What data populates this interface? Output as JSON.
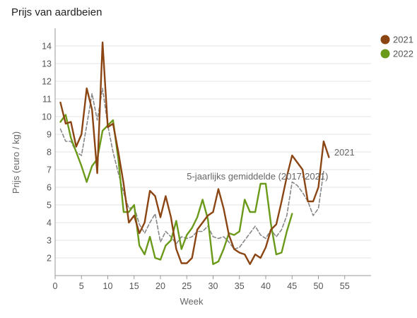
{
  "chart_data": {
    "type": "line",
    "title": "Prijs van aardbeien",
    "xlabel": "Week",
    "ylabel": "Prijs (euro / kg)",
    "xlim": [
      0,
      60
    ],
    "ylim": [
      1,
      15
    ],
    "xticks": [
      0,
      5,
      10,
      15,
      20,
      25,
      30,
      35,
      40,
      45,
      50,
      55
    ],
    "yticks": [
      2,
      3,
      4,
      5,
      6,
      7,
      8,
      9,
      10,
      11,
      12,
      13,
      14
    ],
    "grid": true,
    "legend": "top-right",
    "annotations": [
      {
        "text": "2021",
        "x": 53,
        "y": 7.8
      },
      {
        "text": "5-jaarlijks gemiddelde (2017-2021)",
        "x": 25,
        "y": 6.45
      }
    ],
    "series": [
      {
        "name": "2021",
        "color": "#8B4513",
        "style": "solid",
        "x": [
          1,
          2,
          3,
          4,
          5,
          6,
          7,
          8,
          9,
          10,
          11,
          12,
          13,
          14,
          15,
          16,
          17,
          18,
          19,
          20,
          21,
          22,
          23,
          24,
          25,
          26,
          27,
          28,
          29,
          30,
          31,
          32,
          33,
          34,
          35,
          36,
          37,
          38,
          39,
          40,
          41,
          42,
          43,
          44,
          45,
          46,
          47,
          48,
          49,
          50,
          51,
          52
        ],
        "y": [
          10.8,
          9.6,
          9.7,
          8.3,
          9.0,
          11.6,
          10.4,
          6.8,
          14.2,
          9.4,
          9.6,
          8.0,
          6.2,
          4.0,
          4.4,
          3.4,
          4.0,
          5.8,
          5.5,
          4.3,
          5.5,
          4.3,
          2.5,
          1.7,
          1.7,
          2.0,
          3.6,
          4.0,
          4.4,
          4.6,
          5.9,
          4.8,
          3.3,
          2.5,
          2.3,
          2.2,
          1.65,
          2.2,
          2.0,
          2.6,
          3.6,
          3.9,
          5.2,
          6.6,
          7.8,
          7.4,
          7.0,
          5.2,
          5.2,
          6.0,
          8.6,
          7.7
        ]
      },
      {
        "name": "2022",
        "color": "#6B9A1A",
        "style": "solid",
        "x": [
          1,
          2,
          3,
          4,
          5,
          6,
          7,
          8,
          9,
          10,
          11,
          12,
          13,
          14,
          15,
          16,
          17,
          18,
          19,
          20,
          21,
          22,
          23,
          24,
          25,
          26,
          27,
          28,
          29,
          30,
          31,
          32,
          33,
          34,
          35,
          36,
          37,
          38,
          39,
          40,
          41,
          42,
          43,
          44,
          45
        ],
        "y": [
          9.7,
          10.1,
          8.8,
          8.0,
          7.2,
          6.3,
          7.2,
          7.6,
          9.2,
          9.5,
          9.8,
          7.6,
          4.6,
          4.6,
          5.0,
          2.7,
          2.2,
          3.2,
          2.0,
          1.9,
          2.7,
          3.0,
          4.1,
          2.5,
          3.3,
          3.7,
          4.3,
          5.3,
          4.2,
          1.65,
          1.8,
          2.5,
          3.4,
          3.3,
          3.5,
          5.3,
          4.6,
          4.6,
          6.2,
          6.2,
          3.9,
          2.2,
          2.3,
          3.5,
          4.5
        ]
      },
      {
        "name": "5-jaarlijks gemiddelde (2017-2021)",
        "color": "#888888",
        "style": "dashed",
        "x": [
          1,
          2,
          3,
          4,
          5,
          6,
          7,
          8,
          9,
          10,
          11,
          12,
          13,
          14,
          15,
          16,
          17,
          18,
          19,
          20,
          21,
          22,
          23,
          24,
          25,
          26,
          27,
          28,
          29,
          30,
          31,
          32,
          33,
          34,
          35,
          36,
          37,
          38,
          39,
          40,
          41,
          42,
          43,
          44,
          45,
          46,
          47,
          48,
          49,
          50,
          51
        ],
        "y": [
          9.3,
          8.6,
          8.6,
          8.0,
          7.8,
          9.5,
          11.3,
          9.8,
          11.6,
          9.5,
          8.0,
          6.8,
          5.7,
          4.8,
          4.9,
          3.9,
          3.4,
          4.0,
          4.5,
          2.9,
          3.5,
          3.2,
          2.8,
          3.2,
          3.1,
          3.2,
          3.5,
          3.5,
          3.8,
          3.2,
          3.1,
          3.2,
          2.9,
          2.5,
          2.6,
          3.0,
          3.4,
          3.8,
          3.3,
          3.1,
          3.6,
          3.2,
          3.6,
          4.4,
          6.3,
          6.1,
          5.7,
          5.2,
          4.4,
          4.8,
          6.9
        ]
      }
    ]
  }
}
